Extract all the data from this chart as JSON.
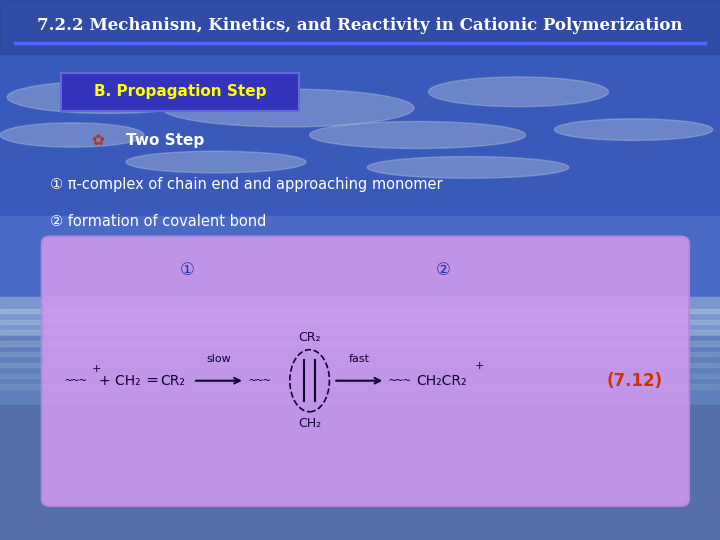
{
  "title": "7.2.2 Mechanism, Kinetics, and Reactivity in Cationic Polymerization",
  "title_color": "#FFFFFF",
  "title_fontsize": 12,
  "title_bold": true,
  "underline_color": "#5566FF",
  "section_label": "B. Propagation Step",
  "section_box_color": "#3333BB",
  "section_text_color": "#FFFF00",
  "bullet_emoji": "🌸",
  "bullet_text": "Two Step",
  "bullet_color": "#FFFFFF",
  "item1": "① π-complex of chain end and approaching monomer",
  "item2": "② formation of covalent bond",
  "items_color": "#FFFFFF",
  "box_bg": "#CC99EE",
  "reaction_color": "#110033",
  "eq_number": "(7.12)",
  "eq_number_color": "#CC3300",
  "circled1_color": "#2233AA",
  "circled2_color": "#2233AA",
  "bg_sky_top": "#3A5DB0",
  "bg_sky_mid": "#4A6EC0",
  "bg_ocean": "#5A7EC8",
  "bg_horizon": "#7A9AD8"
}
